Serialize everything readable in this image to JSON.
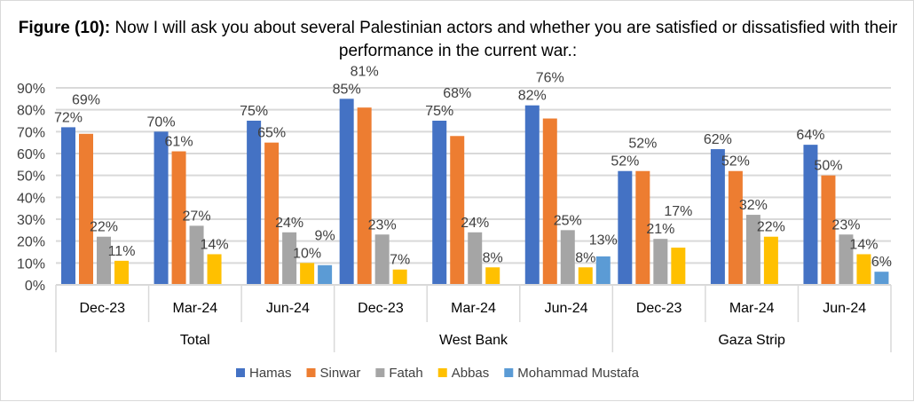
{
  "chart_data": {
    "type": "bar",
    "title_bold": "Figure (10):",
    "title": " Now I will ask you about several Palestinian actors and whether you are satisfied or dissatisfied with their performance in the current war.:",
    "groups": [
      {
        "name": "Total",
        "categories": [
          "Dec-23",
          "Mar-24",
          "Jun-24"
        ]
      },
      {
        "name": "West Bank",
        "categories": [
          "Dec-23",
          "Mar-24",
          "Jun-24"
        ]
      },
      {
        "name": "Gaza Strip",
        "categories": [
          "Dec-23",
          "Mar-24",
          "Jun-24"
        ]
      }
    ],
    "series": [
      {
        "name": "Hamas",
        "color": "#4472C4",
        "values": [
          72,
          70,
          75,
          85,
          75,
          82,
          52,
          62,
          64
        ]
      },
      {
        "name": "Sinwar",
        "color": "#ED7D31",
        "values": [
          69,
          61,
          65,
          81,
          68,
          76,
          52,
          52,
          50
        ]
      },
      {
        "name": "Fatah",
        "color": "#A5A5A5",
        "values": [
          22,
          27,
          24,
          23,
          24,
          25,
          21,
          32,
          23
        ]
      },
      {
        "name": "Abbas",
        "color": "#FFC000",
        "values": [
          11,
          14,
          10,
          7,
          8,
          8,
          17,
          22,
          14
        ]
      },
      {
        "name": "Mohammad Mustafa",
        "color": "#5B9BD5",
        "values": [
          null,
          null,
          9,
          null,
          null,
          13,
          null,
          null,
          6
        ]
      }
    ],
    "ylim": [
      0,
      90
    ],
    "yticks": [
      0,
      10,
      20,
      30,
      40,
      50,
      60,
      70,
      80,
      90
    ],
    "unit": "%",
    "grid": true,
    "legend": "bottom"
  }
}
